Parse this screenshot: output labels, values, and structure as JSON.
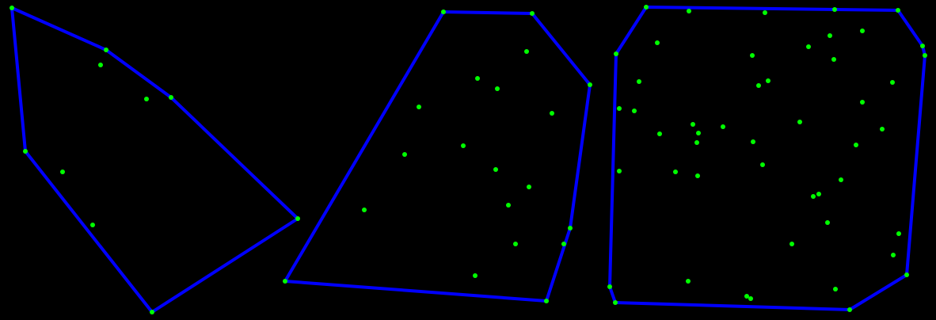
{
  "diagram": {
    "background": "#000000",
    "hull_color": "#0000ff",
    "point_color": "#00ff00",
    "panels": [
      {
        "name": "hull-1",
        "hull": [
          [
            15,
            10
          ],
          [
            134,
            63
          ],
          [
            216,
            123
          ],
          [
            376,
            276
          ],
          [
            192,
            394
          ],
          [
            32,
            191
          ]
        ],
        "points": [
          [
            15,
            10
          ],
          [
            134,
            63
          ],
          [
            127,
            82
          ],
          [
            185,
            125
          ],
          [
            216,
            123
          ],
          [
            32,
            191
          ],
          [
            79,
            217
          ],
          [
            376,
            276
          ],
          [
            117,
            284
          ],
          [
            192,
            394
          ]
        ]
      },
      {
        "name": "hull-2",
        "hull": [
          [
            560,
            15
          ],
          [
            672,
            17
          ],
          [
            745,
            107
          ],
          [
            720,
            288
          ],
          [
            690,
            380
          ],
          [
            360,
            355
          ]
        ],
        "points": [
          [
            560,
            15
          ],
          [
            672,
            17
          ],
          [
            665,
            65
          ],
          [
            745,
            107
          ],
          [
            603,
            99
          ],
          [
            628,
            112
          ],
          [
            529,
            135
          ],
          [
            697,
            143
          ],
          [
            585,
            184
          ],
          [
            511,
            195
          ],
          [
            626,
            214
          ],
          [
            668,
            236
          ],
          [
            642,
            259
          ],
          [
            460,
            265
          ],
          [
            720,
            288
          ],
          [
            712,
            308
          ],
          [
            651,
            308
          ],
          [
            600,
            348
          ],
          [
            360,
            355
          ],
          [
            690,
            380
          ]
        ]
      },
      {
        "name": "hull-3",
        "hull": [
          [
            816,
            9
          ],
          [
            1134,
            13
          ],
          [
            1165,
            58
          ],
          [
            1168,
            70
          ],
          [
            1145,
            347
          ],
          [
            1073,
            391
          ],
          [
            777,
            382
          ],
          [
            770,
            362
          ],
          [
            778,
            68
          ]
        ],
        "points": [
          [
            816,
            9
          ],
          [
            870,
            14
          ],
          [
            966,
            16
          ],
          [
            1054,
            12
          ],
          [
            1134,
            13
          ],
          [
            1165,
            58
          ],
          [
            1168,
            70
          ],
          [
            1048,
            45
          ],
          [
            1089,
            39
          ],
          [
            830,
            54
          ],
          [
            1021,
            59
          ],
          [
            1053,
            75
          ],
          [
            950,
            70
          ],
          [
            778,
            68
          ],
          [
            807,
            103
          ],
          [
            970,
            102
          ],
          [
            958,
            108
          ],
          [
            1127,
            104
          ],
          [
            1089,
            129
          ],
          [
            782,
            137
          ],
          [
            801,
            140
          ],
          [
            875,
            157
          ],
          [
            913,
            160
          ],
          [
            1010,
            154
          ],
          [
            1114,
            163
          ],
          [
            882,
            168
          ],
          [
            833,
            169
          ],
          [
            880,
            180
          ],
          [
            951,
            179
          ],
          [
            1081,
            183
          ],
          [
            853,
            217
          ],
          [
            782,
            216
          ],
          [
            963,
            208
          ],
          [
            881,
            222
          ],
          [
            1062,
            227
          ],
          [
            1034,
            245
          ],
          [
            1027,
            248
          ],
          [
            1045,
            281
          ],
          [
            1135,
            295
          ],
          [
            1000,
            308
          ],
          [
            1128,
            322
          ],
          [
            1145,
            347
          ],
          [
            869,
            355
          ],
          [
            770,
            362
          ],
          [
            1055,
            365
          ],
          [
            943,
            374
          ],
          [
            948,
            377
          ],
          [
            777,
            382
          ],
          [
            1073,
            391
          ]
        ]
      }
    ]
  }
}
